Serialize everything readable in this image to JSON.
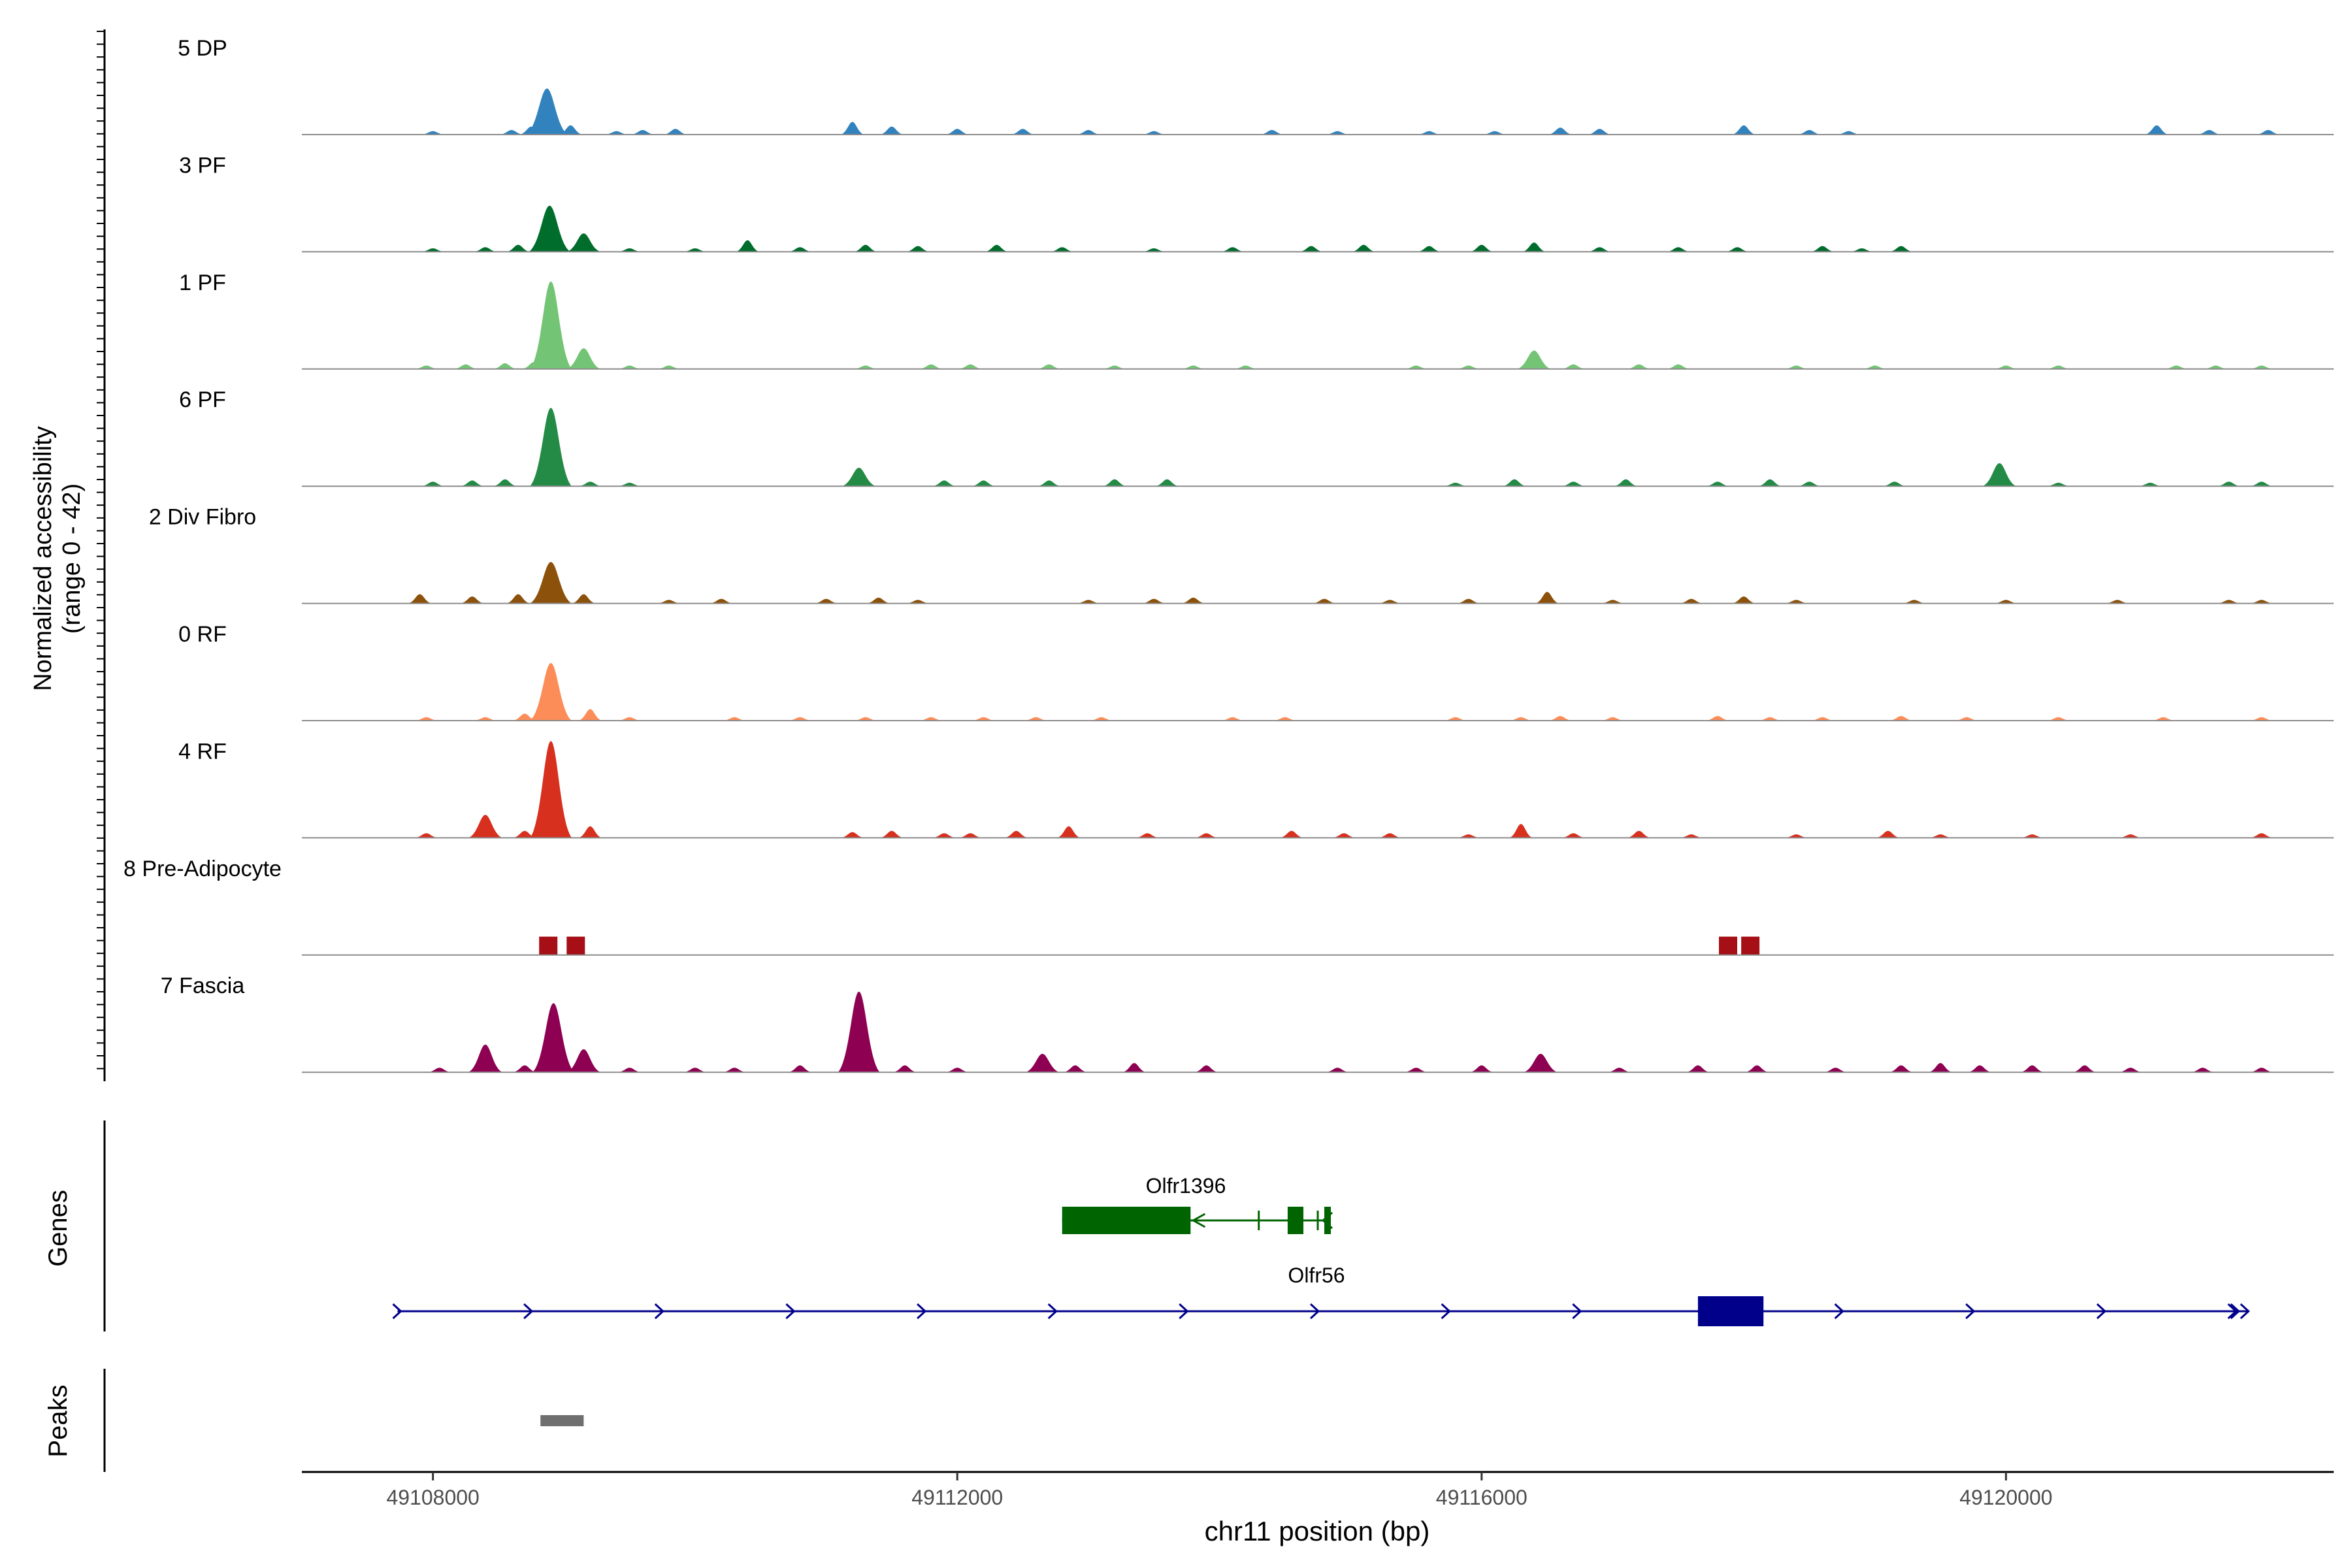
{
  "chart_data": {
    "type": "area",
    "title": "",
    "xlabel": "chr11 position (bp)",
    "ylabel": "Normalized accessibility",
    "ylabel_range": "(range 0 - 42)",
    "y_range": [
      0,
      42
    ],
    "x_range": [
      49107000,
      49122500
    ],
    "x_ticks": [
      49108000,
      49112000,
      49116000,
      49120000
    ],
    "x_tick_labels": [
      "49108000",
      "49112000",
      "49116000",
      "49120000"
    ],
    "tracks": [
      {
        "name": "5 DP",
        "color": "#3182BD",
        "peaks": [
          [
            49108000,
            1.5
          ],
          [
            49108600,
            2
          ],
          [
            49108750,
            3.5
          ],
          [
            49108870,
            20
          ],
          [
            49109050,
            4
          ],
          [
            49109400,
            1.5
          ],
          [
            49109600,
            2
          ],
          [
            49109850,
            2.5
          ],
          [
            49111200,
            5.5
          ],
          [
            49111500,
            3.5
          ],
          [
            49112000,
            2.5
          ],
          [
            49112500,
            2.5
          ],
          [
            49113000,
            2
          ],
          [
            49113500,
            1.5
          ],
          [
            49114400,
            2
          ],
          [
            49114900,
            1.5
          ],
          [
            49115600,
            1.5
          ],
          [
            49116100,
            1.5
          ],
          [
            49116600,
            3
          ],
          [
            49116900,
            2.5
          ],
          [
            49118000,
            4
          ],
          [
            49118500,
            2
          ],
          [
            49118800,
            1.5
          ],
          [
            49121150,
            4
          ],
          [
            49121550,
            2
          ],
          [
            49122000,
            2
          ]
        ]
      },
      {
        "name": "3 PF",
        "color": "#006D2C",
        "peaks": [
          [
            49108000,
            1.5
          ],
          [
            49108400,
            2
          ],
          [
            49108650,
            3
          ],
          [
            49108890,
            20
          ],
          [
            49109150,
            8
          ],
          [
            49109500,
            1.5
          ],
          [
            49110000,
            1.5
          ],
          [
            49110400,
            5
          ],
          [
            49110800,
            2
          ],
          [
            49111300,
            3
          ],
          [
            49111700,
            2.5
          ],
          [
            49112300,
            3
          ],
          [
            49112800,
            2
          ],
          [
            49113500,
            1.5
          ],
          [
            49114100,
            2
          ],
          [
            49114700,
            2.5
          ],
          [
            49115100,
            3
          ],
          [
            49115600,
            2.5
          ],
          [
            49116000,
            3
          ],
          [
            49116400,
            4
          ],
          [
            49116900,
            2
          ],
          [
            49117500,
            2
          ],
          [
            49117950,
            2
          ],
          [
            49118600,
            2.5
          ],
          [
            49118900,
            1.5
          ],
          [
            49119200,
            2.5
          ]
        ]
      },
      {
        "name": "1 PF",
        "color": "#74C476",
        "peaks": [
          [
            49107950,
            1.5
          ],
          [
            49108250,
            2
          ],
          [
            49108550,
            2.5
          ],
          [
            49108770,
            3
          ],
          [
            49108900,
            38
          ],
          [
            49109150,
            9
          ],
          [
            49109500,
            1.5
          ],
          [
            49109800,
            1.5
          ],
          [
            49111300,
            1.5
          ],
          [
            49111800,
            2
          ],
          [
            49112100,
            2
          ],
          [
            49112700,
            2
          ],
          [
            49113200,
            1.5
          ],
          [
            49113800,
            1.5
          ],
          [
            49114200,
            1.5
          ],
          [
            49115500,
            1.5
          ],
          [
            49115900,
            1.5
          ],
          [
            49116400,
            8
          ],
          [
            49116700,
            2
          ],
          [
            49117200,
            2
          ],
          [
            49117500,
            2
          ],
          [
            49118400,
            1.5
          ],
          [
            49119000,
            1.5
          ],
          [
            49120000,
            1.5
          ],
          [
            49120400,
            1.5
          ],
          [
            49121300,
            1.5
          ],
          [
            49121600,
            1.5
          ],
          [
            49121950,
            1.5
          ]
        ]
      },
      {
        "name": "6 PF",
        "color": "#238B45",
        "peaks": [
          [
            49108000,
            2
          ],
          [
            49108300,
            2.5
          ],
          [
            49108550,
            3
          ],
          [
            49108900,
            34
          ],
          [
            49109200,
            2
          ],
          [
            49109500,
            1.5
          ],
          [
            49111250,
            8
          ],
          [
            49111900,
            2.5
          ],
          [
            49112200,
            2.5
          ],
          [
            49112700,
            2.5
          ],
          [
            49113200,
            3
          ],
          [
            49113600,
            3
          ],
          [
            49115800,
            1.5
          ],
          [
            49116250,
            3
          ],
          [
            49116700,
            2
          ],
          [
            49117100,
            3
          ],
          [
            49117800,
            2
          ],
          [
            49118200,
            3
          ],
          [
            49118500,
            2
          ],
          [
            49119150,
            2
          ],
          [
            49119950,
            10
          ],
          [
            49120400,
            1.5
          ],
          [
            49121100,
            1.5
          ],
          [
            49121700,
            2
          ],
          [
            49121950,
            2
          ]
        ]
      },
      {
        "name": "2 Div Fibro",
        "color": "#8C510A",
        "peaks": [
          [
            49107900,
            4
          ],
          [
            49108300,
            3
          ],
          [
            49108650,
            4
          ],
          [
            49108900,
            18
          ],
          [
            49109150,
            4
          ],
          [
            49109800,
            1.5
          ],
          [
            49110200,
            2
          ],
          [
            49111000,
            2
          ],
          [
            49111400,
            2.5
          ],
          [
            49111700,
            1.5
          ],
          [
            49113000,
            1.5
          ],
          [
            49113500,
            2
          ],
          [
            49113800,
            2.5
          ],
          [
            49114800,
            2
          ],
          [
            49115300,
            1.5
          ],
          [
            49115900,
            2
          ],
          [
            49116500,
            5
          ],
          [
            49117000,
            1.5
          ],
          [
            49117600,
            2
          ],
          [
            49118000,
            3
          ],
          [
            49118400,
            1.5
          ],
          [
            49119300,
            1.5
          ],
          [
            49120000,
            1.5
          ],
          [
            49120850,
            1.5
          ],
          [
            49121700,
            1.5
          ],
          [
            49121950,
            1.5
          ]
        ]
      },
      {
        "name": "0 RF",
        "color": "#FC8D59",
        "peaks": [
          [
            49107950,
            1.5
          ],
          [
            49108400,
            1.5
          ],
          [
            49108700,
            3
          ],
          [
            49108900,
            25
          ],
          [
            49109200,
            5
          ],
          [
            49109500,
            1.5
          ],
          [
            49110300,
            1.5
          ],
          [
            49110800,
            1.5
          ],
          [
            49111300,
            1.5
          ],
          [
            49111800,
            1.5
          ],
          [
            49112200,
            1.5
          ],
          [
            49112600,
            1.5
          ],
          [
            49113100,
            1.5
          ],
          [
            49114100,
            1.5
          ],
          [
            49114500,
            1.5
          ],
          [
            49115800,
            1.5
          ],
          [
            49116300,
            1.5
          ],
          [
            49116600,
            2
          ],
          [
            49117000,
            1.5
          ],
          [
            49117800,
            2
          ],
          [
            49118200,
            1.5
          ],
          [
            49118600,
            1.5
          ],
          [
            49119200,
            2
          ],
          [
            49119700,
            1.5
          ],
          [
            49120400,
            1.5
          ],
          [
            49121200,
            1.5
          ],
          [
            49121950,
            1.5
          ]
        ]
      },
      {
        "name": "4 RF",
        "color": "#D7301F",
        "peaks": [
          [
            49107950,
            2
          ],
          [
            49108400,
            10
          ],
          [
            49108700,
            3
          ],
          [
            49108900,
            42
          ],
          [
            49109200,
            5
          ],
          [
            49111200,
            2.5
          ],
          [
            49111500,
            3
          ],
          [
            49111900,
            2
          ],
          [
            49112100,
            2
          ],
          [
            49112450,
            3
          ],
          [
            49112850,
            5
          ],
          [
            49113450,
            2
          ],
          [
            49113900,
            2
          ],
          [
            49114550,
            3
          ],
          [
            49114950,
            2
          ],
          [
            49115300,
            2
          ],
          [
            49115900,
            1.5
          ],
          [
            49116300,
            6
          ],
          [
            49116700,
            2
          ],
          [
            49117200,
            3
          ],
          [
            49117600,
            1.5
          ],
          [
            49118400,
            1.5
          ],
          [
            49119100,
            3
          ],
          [
            49119500,
            1.5
          ],
          [
            49120200,
            1.5
          ],
          [
            49120950,
            1.5
          ],
          [
            49121950,
            2
          ]
        ]
      },
      {
        "name": "8 Pre-Adipocyte",
        "color": "#A50F15",
        "peaks": [
          [
            49108880,
            8
          ],
          [
            49109090,
            8
          ],
          [
            49117880,
            8
          ],
          [
            49118050,
            8
          ]
        ]
      },
      {
        "name": "7 Fascia",
        "color": "#8E0152",
        "peaks": [
          [
            49108050,
            2
          ],
          [
            49108400,
            12
          ],
          [
            49108700,
            3
          ],
          [
            49108920,
            30
          ],
          [
            49109150,
            10
          ],
          [
            49109500,
            2
          ],
          [
            49110000,
            2
          ],
          [
            49110300,
            2
          ],
          [
            49110800,
            3
          ],
          [
            49111250,
            35
          ],
          [
            49111600,
            3
          ],
          [
            49112000,
            2
          ],
          [
            49112650,
            8
          ],
          [
            49112900,
            3
          ],
          [
            49113350,
            4
          ],
          [
            49113900,
            3
          ],
          [
            49114900,
            2
          ],
          [
            49115500,
            2
          ],
          [
            49116000,
            3
          ],
          [
            49116450,
            8
          ],
          [
            49117050,
            2
          ],
          [
            49117650,
            3
          ],
          [
            49118100,
            3
          ],
          [
            49118700,
            2
          ],
          [
            49119200,
            3
          ],
          [
            49119500,
            4
          ],
          [
            49119800,
            3
          ],
          [
            49120200,
            3
          ],
          [
            49120600,
            3
          ],
          [
            49120950,
            2
          ],
          [
            49121500,
            2
          ],
          [
            49121950,
            2
          ]
        ]
      }
    ],
    "genes": [
      {
        "name": "Olfr1396",
        "color": "#006400",
        "start": 49112800,
        "end": 49114850,
        "strand": "-",
        "exons": [
          [
            49112800,
            49113780
          ],
          [
            49114520,
            49114640
          ],
          [
            49114800,
            49114850
          ]
        ],
        "thin_marks": [
          49114300,
          49114750
        ]
      },
      {
        "name": "Olfr56",
        "color": "#00008B",
        "start": 49107730,
        "end": 49121850,
        "strand": "+",
        "exons": [
          [
            49117650,
            49118150
          ]
        ]
      }
    ],
    "gene_track_label": "Genes",
    "peaks_track_label": "Peaks",
    "peak_regions": [
      [
        49108820,
        49109150
      ]
    ]
  }
}
